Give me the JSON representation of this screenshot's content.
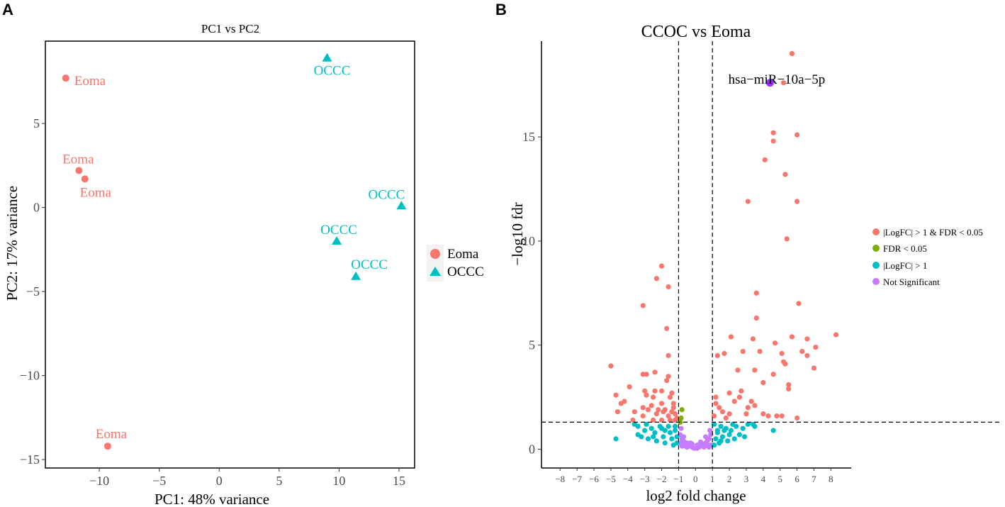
{
  "panel_a_letter": "A",
  "panel_b_letter": "B",
  "colors": {
    "eoma": "#F8766D",
    "occc": "#00BFC4",
    "sig_both": "#F8766D",
    "fdr_only": "#7CAE00",
    "logfc_only": "#00BFC4",
    "not_sig": "#C77CFF",
    "highlight": "#9B30FF"
  },
  "chart_data": [
    {
      "type": "scatter",
      "title": "PC1 vs PC2",
      "xlabel": "PC1: 48% variance",
      "ylabel": "PC2: 17% variance",
      "xlim": [
        -14.5,
        16.3
      ],
      "ylim": [
        -15.5,
        9.9
      ],
      "xticks": [
        -10,
        -5,
        0,
        5,
        10,
        15
      ],
      "yticks": [
        -15,
        -10,
        -5,
        0,
        5
      ],
      "legend": {
        "position": "right",
        "entries": [
          "Eoma",
          "OCCC"
        ]
      },
      "points": [
        {
          "group": "Eoma",
          "x": -12.8,
          "y": 7.7,
          "label": "Eoma",
          "anchor": "start",
          "dx": 12,
          "dy": 10
        },
        {
          "group": "Eoma",
          "x": -11.7,
          "y": 2.2,
          "label": "Eoma",
          "anchor": "middle",
          "dx": -1,
          "dy": -10
        },
        {
          "group": "Eoma",
          "x": -11.2,
          "y": 1.7,
          "label": "Eoma",
          "anchor": "middle",
          "dx": 15,
          "dy": 25
        },
        {
          "group": "Eoma",
          "x": -9.3,
          "y": -14.2,
          "label": "Eoma",
          "anchor": "middle",
          "dx": 5,
          "dy": -11
        },
        {
          "group": "OCCC",
          "x": 9.0,
          "y": 8.9,
          "label": "OCCC",
          "anchor": "middle",
          "dx": 7,
          "dy": 24
        },
        {
          "group": "OCCC",
          "x": 15.2,
          "y": 0.1,
          "label": "OCCC",
          "anchor": "middle",
          "dx": -21,
          "dy": -10
        },
        {
          "group": "OCCC",
          "x": 9.8,
          "y": -2.0,
          "label": "OCCC",
          "anchor": "middle",
          "dx": 3,
          "dy": -10
        },
        {
          "group": "OCCC",
          "x": 11.4,
          "y": -4.1,
          "label": "OCCC",
          "anchor": "middle",
          "dx": 19,
          "dy": -11
        }
      ]
    },
    {
      "type": "scatter",
      "title": "CCOC vs Eoma",
      "xlabel": "log2 fold change",
      "ylabel": "−log10 fdr",
      "xlim": [
        -9.1,
        9.2
      ],
      "ylim": [
        -0.9,
        19.6
      ],
      "xticks": [
        -8,
        -7,
        -6,
        -5,
        -4,
        -3,
        -2,
        -1,
        0,
        1,
        2,
        3,
        4,
        5,
        6,
        7,
        8
      ],
      "yticks": [
        0,
        5,
        10,
        15
      ],
      "thresholds": {
        "x": [
          -1,
          1
        ],
        "y": 1.3
      },
      "annotation": {
        "label": "hsa−miR−10a−5p",
        "x": 4.4,
        "y": 17.6
      },
      "legend": {
        "position": "right",
        "entries": [
          "|LogFC| > 1 & FDR < 0.05",
          "FDR < 0.05",
          "|LogFC| > 1",
          "Not Significant"
        ]
      },
      "points_sig_both": [
        [
          5.7,
          19.0
        ],
        [
          5.2,
          17.6
        ],
        [
          4.6,
          15.2
        ],
        [
          6.0,
          15.1
        ],
        [
          4.6,
          14.8
        ],
        [
          4.1,
          13.9
        ],
        [
          5.3,
          13.2
        ],
        [
          3.1,
          11.9
        ],
        [
          6.0,
          11.9
        ],
        [
          5.4,
          10.1
        ],
        [
          6.1,
          7.0
        ],
        [
          3.6,
          7.5
        ],
        [
          3.6,
          6.3
        ],
        [
          8.3,
          5.5
        ],
        [
          5.7,
          5.4
        ],
        [
          3.4,
          5.3
        ],
        [
          2.1,
          5.4
        ],
        [
          6.6,
          5.3
        ],
        [
          7.1,
          4.9
        ],
        [
          4.7,
          5.1
        ],
        [
          6.3,
          4.7
        ],
        [
          1.7,
          4.6
        ],
        [
          1.3,
          4.5
        ],
        [
          2.8,
          4.7
        ],
        [
          3.8,
          4.7
        ],
        [
          5.1,
          4.6
        ],
        [
          5.2,
          4.2
        ],
        [
          5.3,
          4.1
        ],
        [
          6.6,
          4.5
        ],
        [
          7.0,
          3.9
        ],
        [
          3.5,
          3.8
        ],
        [
          4.6,
          3.6
        ],
        [
          2.5,
          3.8
        ],
        [
          4.0,
          3.2
        ],
        [
          5.5,
          3.1
        ],
        [
          5.5,
          2.9
        ],
        [
          2.7,
          2.8
        ],
        [
          2.0,
          2.7
        ],
        [
          1.2,
          2.5
        ],
        [
          2.3,
          2.3
        ],
        [
          3.3,
          2.3
        ],
        [
          3.1,
          2.0
        ],
        [
          3.0,
          1.7
        ],
        [
          1.4,
          2.0
        ],
        [
          1.6,
          1.8
        ],
        [
          2.0,
          1.7
        ],
        [
          1.1,
          1.6
        ],
        [
          4.0,
          1.7
        ],
        [
          4.3,
          1.6
        ],
        [
          4.8,
          1.6
        ],
        [
          5.1,
          1.6
        ],
        [
          6.0,
          1.5
        ],
        [
          2.6,
          2.5
        ],
        [
          3.5,
          2.1
        ],
        [
          1.8,
          1.5
        ],
        [
          1.2,
          2.2
        ],
        [
          -2.0,
          8.8
        ],
        [
          -2.3,
          8.2
        ],
        [
          -1.6,
          7.8
        ],
        [
          -3.1,
          6.9
        ],
        [
          -1.7,
          5.8
        ],
        [
          -1.6,
          4.5
        ],
        [
          -5.0,
          4.0
        ],
        [
          -3.1,
          3.6
        ],
        [
          -2.9,
          3.6
        ],
        [
          -2.4,
          3.7
        ],
        [
          -1.6,
          3.5
        ],
        [
          -1.7,
          3.3
        ],
        [
          -3.9,
          3.0
        ],
        [
          -3.0,
          2.8
        ],
        [
          -2.4,
          2.8
        ],
        [
          -2.0,
          2.8
        ],
        [
          -1.4,
          2.7
        ],
        [
          -4.7,
          2.6
        ],
        [
          -2.9,
          2.6
        ],
        [
          -2.5,
          2.5
        ],
        [
          -1.5,
          2.5
        ],
        [
          -1.3,
          2.2
        ],
        [
          -4.4,
          2.2
        ],
        [
          -4.2,
          2.3
        ],
        [
          -3.1,
          2.0
        ],
        [
          -2.6,
          2.1
        ],
        [
          -2.0,
          2.2
        ],
        [
          -1.8,
          1.9
        ],
        [
          -1.3,
          2.0
        ],
        [
          -4.6,
          1.8
        ],
        [
          -3.6,
          1.8
        ],
        [
          -3.1,
          1.6
        ],
        [
          -2.8,
          1.9
        ],
        [
          -2.3,
          1.7
        ],
        [
          -1.9,
          1.8
        ],
        [
          -1.6,
          1.6
        ],
        [
          -1.2,
          1.7
        ],
        [
          -1.1,
          1.5
        ],
        [
          -3.7,
          1.4
        ],
        [
          -2.5,
          1.4
        ],
        [
          -2.0,
          1.4
        ],
        [
          -1.5,
          1.4
        ],
        [
          -1.2,
          1.4
        ],
        [
          -2.2,
          1.9
        ],
        [
          -1.4,
          1.8
        ]
      ],
      "points_fdr_only": [
        [
          -0.8,
          1.9
        ],
        [
          -0.85,
          1.5
        ],
        [
          -0.9,
          1.3
        ]
      ],
      "points_logfc_only": [
        [
          -4.7,
          0.5
        ],
        [
          -3.6,
          1.2
        ],
        [
          -3.4,
          1.1
        ],
        [
          -3.0,
          0.9
        ],
        [
          -2.6,
          1.0
        ],
        [
          -2.4,
          0.8
        ],
        [
          -2.0,
          1.0
        ],
        [
          -1.8,
          0.9
        ],
        [
          -1.5,
          0.8
        ],
        [
          -1.2,
          0.9
        ],
        [
          -1.1,
          0.6
        ],
        [
          -3.2,
          0.6
        ],
        [
          -2.8,
          0.5
        ],
        [
          -2.3,
          0.4
        ],
        [
          -1.8,
          0.3
        ],
        [
          -1.3,
          0.2
        ],
        [
          -1.1,
          0.3
        ],
        [
          -2.9,
          1.2
        ],
        [
          -2.1,
          1.1
        ],
        [
          -1.6,
          1.1
        ],
        [
          -1.4,
          0.5
        ],
        [
          -2.5,
          0.6
        ],
        [
          -1.9,
          0.6
        ],
        [
          -3.4,
          0.7
        ],
        [
          -1.2,
          1.1
        ],
        [
          1.1,
          1.2
        ],
        [
          1.3,
          0.9
        ],
        [
          1.5,
          1.1
        ],
        [
          1.8,
          1.0
        ],
        [
          2.1,
          0.9
        ],
        [
          2.4,
          1.1
        ],
        [
          2.8,
          1.0
        ],
        [
          3.1,
          1.2
        ],
        [
          3.5,
          1.1
        ],
        [
          1.2,
          0.5
        ],
        [
          1.6,
          0.6
        ],
        [
          2.0,
          0.7
        ],
        [
          2.3,
          0.5
        ],
        [
          1.4,
          0.3
        ],
        [
          1.1,
          0.2
        ],
        [
          1.9,
          0.4
        ],
        [
          2.6,
          0.7
        ],
        [
          3.4,
          1.2
        ],
        [
          4.6,
          0.9
        ],
        [
          1.3,
          0.8
        ],
        [
          1.7,
          0.9
        ],
        [
          2.9,
          0.6
        ],
        [
          1.5,
          0.4
        ],
        [
          2.2,
          1.2
        ]
      ],
      "points_not_sig": [
        [
          -0.9,
          0.7
        ],
        [
          -0.8,
          0.5
        ],
        [
          -0.7,
          0.4
        ],
        [
          -0.6,
          0.3
        ],
        [
          -0.5,
          0.3
        ],
        [
          -0.4,
          0.2
        ],
        [
          -0.3,
          0.15
        ],
        [
          -0.2,
          0.1
        ],
        [
          -0.1,
          0.05
        ],
        [
          0.0,
          0.05
        ],
        [
          0.1,
          0.05
        ],
        [
          0.2,
          0.1
        ],
        [
          0.3,
          0.15
        ],
        [
          0.4,
          0.2
        ],
        [
          0.5,
          0.25
        ],
        [
          0.6,
          0.3
        ],
        [
          0.7,
          0.4
        ],
        [
          0.8,
          0.5
        ],
        [
          0.9,
          0.7
        ],
        [
          -0.85,
          1.0
        ],
        [
          -0.9,
          0.3
        ],
        [
          -0.7,
          0.6
        ],
        [
          -0.5,
          0.1
        ],
        [
          -0.3,
          0.3
        ],
        [
          0.3,
          0.35
        ],
        [
          0.5,
          0.1
        ],
        [
          0.7,
          0.2
        ],
        [
          0.85,
          0.9
        ],
        [
          0.9,
          0.2
        ],
        [
          -0.6,
          0.15
        ],
        [
          0.6,
          0.6
        ],
        [
          -0.2,
          0.25
        ],
        [
          0.1,
          0.2
        ],
        [
          -0.8,
          0.15
        ],
        [
          0.8,
          0.1
        ]
      ]
    }
  ]
}
